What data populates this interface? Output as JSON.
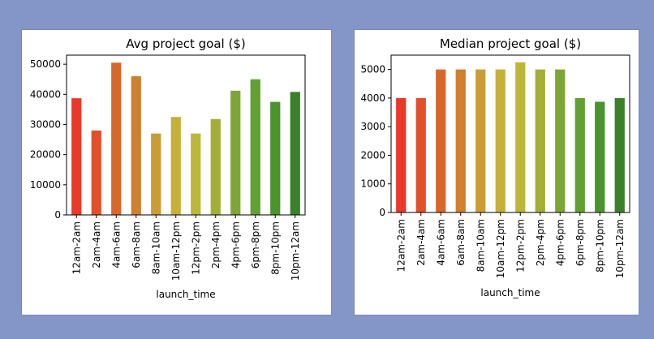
{
  "chart_data": [
    {
      "type": "bar",
      "title": "Avg project goal ($)",
      "xlabel": "launch_time",
      "ylabel": "",
      "categories": [
        "12am-2am",
        "2am-4am",
        "4am-6am",
        "6am-8am",
        "8am-10am",
        "10am-12pm",
        "12pm-2pm",
        "2pm-4pm",
        "4pm-6pm",
        "6pm-8pm",
        "8pm-10pm",
        "10pm-12am"
      ],
      "values": [
        38700,
        28000,
        50500,
        46000,
        27000,
        32500,
        27000,
        31800,
        41200,
        45000,
        37500,
        40800
      ],
      "ylim": [
        0,
        53000
      ],
      "yticks": [
        0,
        10000,
        20000,
        30000,
        40000,
        50000
      ],
      "colors": [
        "#e8392a",
        "#e1502a",
        "#d8682a",
        "#cf802e",
        "#c99c35",
        "#c7b03a",
        "#bcb63a",
        "#a3ae37",
        "#7ea636",
        "#62a032",
        "#4a932d",
        "#3a8129"
      ],
      "grid": false
    },
    {
      "type": "bar",
      "title": "Median project goal ($)",
      "xlabel": "launch_time",
      "ylabel": "",
      "categories": [
        "12am-2am",
        "2am-4am",
        "4am-6am",
        "6am-8am",
        "8am-10am",
        "10am-12pm",
        "12pm-2pm",
        "2pm-4pm",
        "4pm-6pm",
        "6pm-8pm",
        "8pm-10pm",
        "10pm-12am"
      ],
      "values": [
        4000,
        4000,
        5000,
        5000,
        5000,
        5000,
        5250,
        5000,
        5000,
        4000,
        3870,
        4000
      ],
      "ylim": [
        0,
        5500
      ],
      "yticks": [
        0,
        1000,
        2000,
        3000,
        4000,
        5000
      ],
      "colors": [
        "#e8392a",
        "#e1502a",
        "#d8682a",
        "#cf802e",
        "#c99c35",
        "#c7b03a",
        "#bcb63a",
        "#a3ae37",
        "#7ea636",
        "#62a032",
        "#4a932d",
        "#3a8129"
      ],
      "grid": false
    }
  ]
}
